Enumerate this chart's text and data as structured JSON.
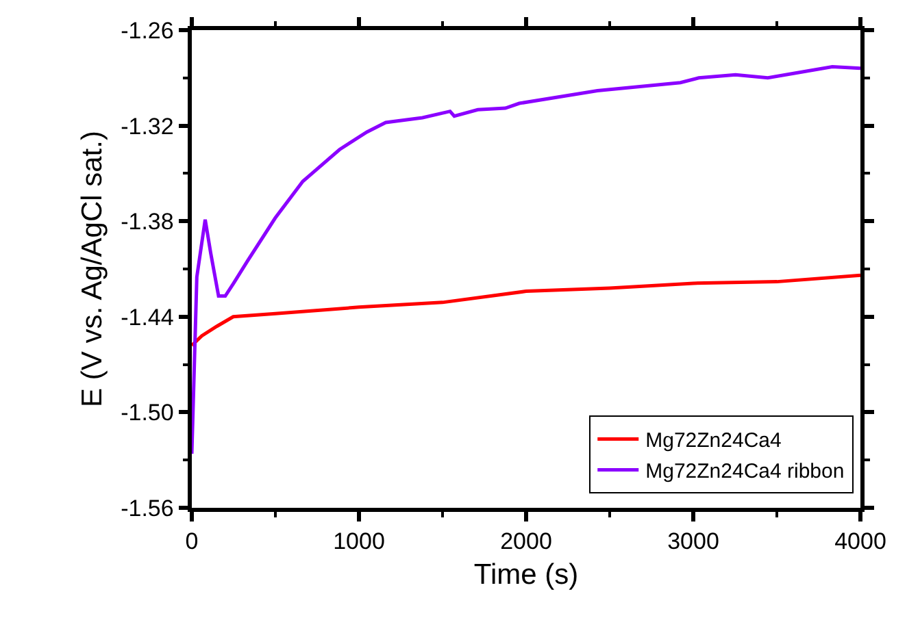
{
  "chart_data": {
    "type": "line",
    "xlabel": "Time (s)",
    "ylabel": "E (V vs. Ag/AgCl sat.)",
    "xlim": [
      0,
      4000
    ],
    "xticks": [
      0,
      1000,
      2000,
      3000,
      4000
    ],
    "ylim": [
      -1.56,
      -1.26
    ],
    "yticks": [
      -1.56,
      {
        "value": -1.5,
        "label": "-1.50"
      },
      -1.44,
      -1.38,
      -1.32,
      -1.26
    ],
    "legend": "bottom right",
    "marker": "none",
    "line_style": "solid",
    "series": [
      {
        "name": "Mg72Zn24Ca4",
        "color": "#ff0000",
        "x": [
          0,
          60,
          150,
          248,
          500,
          1000,
          1500,
          2000,
          2500,
          3000,
          3500,
          4000
        ],
        "values": [
          -1.458,
          -1.452,
          -1.446,
          -1.44,
          -1.438,
          -1.434,
          -1.431,
          -1.424,
          -1.422,
          -1.419,
          -1.418,
          -1.414
        ]
      },
      {
        "name": "Mg72Zn24Ca4 ribbon",
        "color": "#8b00ff",
        "x": [
          0,
          30,
          80,
          113,
          160,
          200,
          250,
          333,
          499,
          664,
          884,
          1047,
          1160,
          1380,
          1545,
          1570,
          1711,
          1876,
          1959,
          2427,
          2923,
          3033,
          3253,
          3446,
          3612,
          3832,
          4000
        ],
        "values": [
          -1.526,
          -1.415,
          -1.379,
          -1.4,
          -1.427,
          -1.427,
          -1.419,
          -1.405,
          -1.378,
          -1.355,
          -1.335,
          -1.324,
          -1.318,
          -1.315,
          -1.311,
          -1.314,
          -1.31,
          -1.309,
          -1.306,
          -1.298,
          -1.293,
          -1.29,
          -1.288,
          -1.29,
          -1.287,
          -1.283,
          -1.284
        ]
      }
    ]
  }
}
